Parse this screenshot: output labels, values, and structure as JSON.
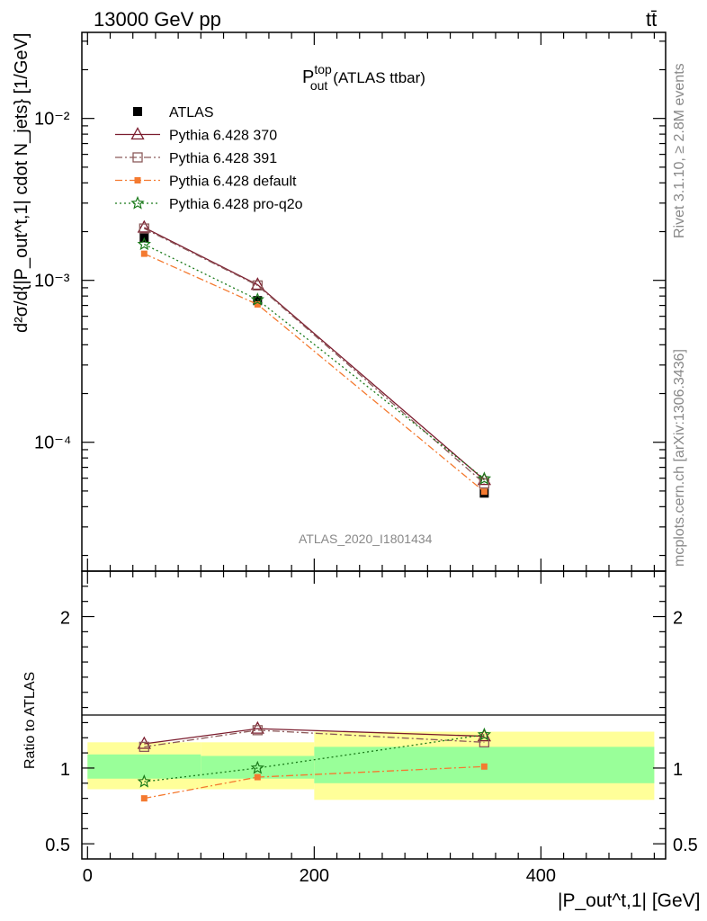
{
  "header": {
    "energy_label": "13000 GeV pp",
    "process_label": "tt̄"
  },
  "side_labels": {
    "rivet": "Rivet 3.1.10, ≥ 2.8M events",
    "mcplots": "mcplots.cern.ch [arXiv:1306.3436]"
  },
  "top_panel": {
    "title_main": "P",
    "title_sup": "top",
    "title_sub": "out",
    "title_rest": "(ATLAS ttbar)",
    "watermark": "ATLAS_2020_I1801434",
    "ylabel": "d²σ/d{|P_out^t,1| cdot N_jets} [1/GeV]",
    "ytick_labels": [
      "10⁻²",
      "10⁻³",
      "10⁻⁴"
    ]
  },
  "bottom_panel": {
    "ylabel": "Ratio to ATLAS",
    "ytick_labels_left": [
      "2",
      "1",
      "0.5"
    ],
    "ytick_labels_right": [
      "2",
      "1",
      "0.5"
    ]
  },
  "xaxis": {
    "label": "|P_out^t,1| [GeV]",
    "tick_labels": [
      "0",
      "200",
      "400"
    ]
  },
  "colors": {
    "atlas": "#000000",
    "p370": "#7b1c2e",
    "p391": "#8c5a5a",
    "pdefault": "#f47a30",
    "pq2o": "#1a7a1a",
    "band_yellow": "#ffff99",
    "band_green": "#99ff99"
  },
  "chart_data": {
    "type": "line",
    "x_bins": [
      [
        0,
        100
      ],
      [
        100,
        200
      ],
      [
        200,
        500
      ]
    ],
    "x_centers": [
      50,
      150,
      350
    ],
    "xlim": [
      -5,
      510
    ],
    "main": {
      "yscale": "log",
      "ylim": [
        1.6e-05,
        0.034
      ]
    },
    "ratio": {
      "ylim": [
        0.4,
        2.3
      ]
    },
    "series": [
      {
        "name": "ATLAS",
        "key": "atlas",
        "marker": "square-filled",
        "line": "none",
        "values": [
          0.00183,
          0.00075,
          4.85e-05
        ]
      },
      {
        "name": "Pythia 6.428 370",
        "key": "p370",
        "marker": "triangle-open",
        "line": "solid",
        "values": [
          0.00212,
          0.00094,
          5.85e-05
        ],
        "ratio": [
          1.16,
          1.26,
          1.21
        ]
      },
      {
        "name": "Pythia 6.428 391",
        "key": "p391",
        "marker": "square-open",
        "line": "dashdot",
        "values": [
          0.00209,
          0.00093,
          5.57e-05
        ],
        "ratio": [
          1.14,
          1.25,
          1.17
        ]
      },
      {
        "name": "Pythia 6.428 default",
        "key": "pdefault",
        "marker": "square-small",
        "line": "dashdot",
        "values": [
          0.00146,
          0.00071,
          4.95e-05
        ],
        "ratio": [
          0.8,
          0.94,
          1.01
        ]
      },
      {
        "name": "Pythia 6.428 pro-q2o",
        "key": "pq2o",
        "marker": "star-open",
        "line": "dotted",
        "values": [
          0.00167,
          0.00076,
          5.95e-05
        ],
        "ratio": [
          0.91,
          1.0,
          1.22
        ]
      }
    ],
    "ratio_bands": {
      "yellow": [
        [
          0.86,
          1.17
        ],
        [
          0.86,
          1.17
        ],
        [
          0.79,
          1.24
        ]
      ],
      "green": [
        [
          0.93,
          1.09
        ],
        [
          0.93,
          1.08
        ],
        [
          0.9,
          1.14
        ]
      ]
    }
  }
}
